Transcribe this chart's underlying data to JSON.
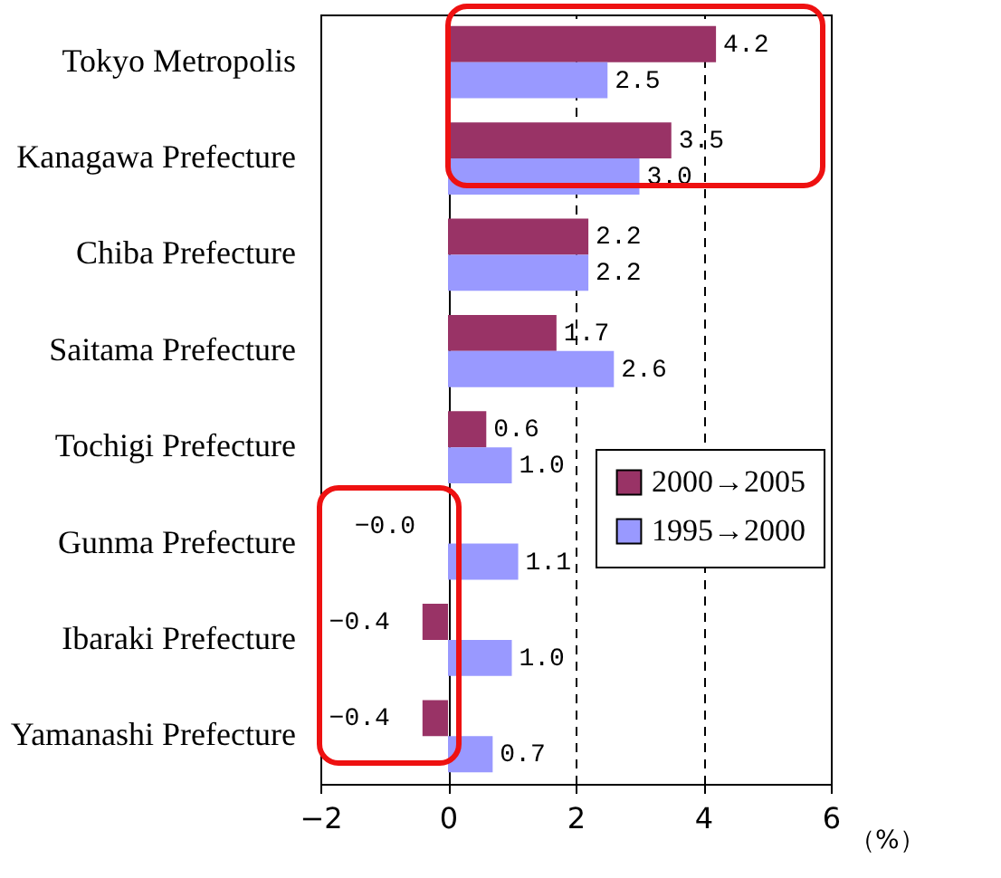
{
  "chart_data": {
    "type": "bar",
    "orientation": "horizontal",
    "xlabel": "（%）",
    "categories": [
      "Tokyo Metropolis",
      "Kanagawa Prefecture",
      "Chiba Prefecture",
      "Saitama Prefecture",
      "Tochigi Prefecture",
      "Gunma Prefecture",
      "Ibaraki Prefecture",
      "Yamanashi Prefecture"
    ],
    "series": [
      {
        "name": "2000→2005",
        "color": "#993366",
        "values": [
          4.2,
          3.5,
          2.2,
          1.7,
          0.6,
          -0.0,
          -0.4,
          -0.4
        ],
        "value_labels": [
          "4.2",
          "3.5",
          "2.2",
          "1.7",
          "0.6",
          "−0.0",
          "−0.4",
          "−0.4"
        ]
      },
      {
        "name": "1995→2000",
        "color": "#9999ff",
        "values": [
          2.5,
          3.0,
          2.2,
          2.6,
          1.0,
          1.1,
          1.0,
          0.7
        ],
        "value_labels": [
          "2.5",
          "3.0",
          "2.2",
          "2.6",
          "1.0",
          "1.1",
          "1.0",
          "0.7"
        ]
      }
    ],
    "xlim": [
      -2,
      6
    ],
    "xticks": [
      -2,
      0,
      2,
      4,
      6
    ],
    "grid": "x",
    "legend": "right"
  }
}
